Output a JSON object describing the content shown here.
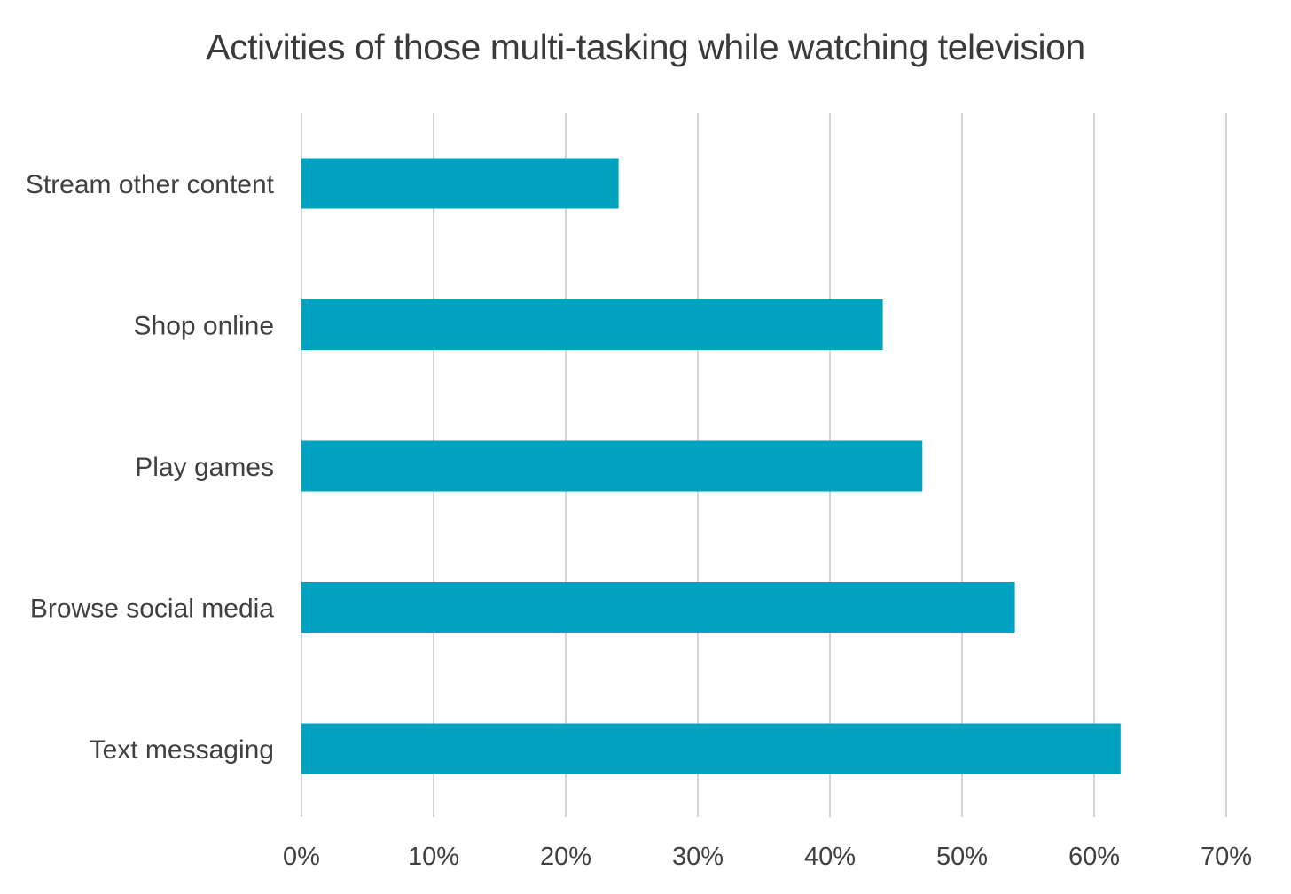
{
  "chart_data": {
    "type": "bar",
    "orientation": "horizontal",
    "title": "Activities of those multi-tasking while watching television",
    "categories": [
      "Stream other content",
      "Shop online",
      "Play games",
      "Browse social media",
      "Text messaging"
    ],
    "values": [
      24,
      44,
      47,
      54,
      62
    ],
    "xlabel": "",
    "ylabel": "",
    "xlim": [
      0,
      70
    ],
    "xticks": [
      "0%",
      "10%",
      "20%",
      "30%",
      "40%",
      "50%",
      "60%",
      "70%"
    ],
    "grid": true,
    "legend": "none",
    "bar_color": "#00a2bf"
  }
}
